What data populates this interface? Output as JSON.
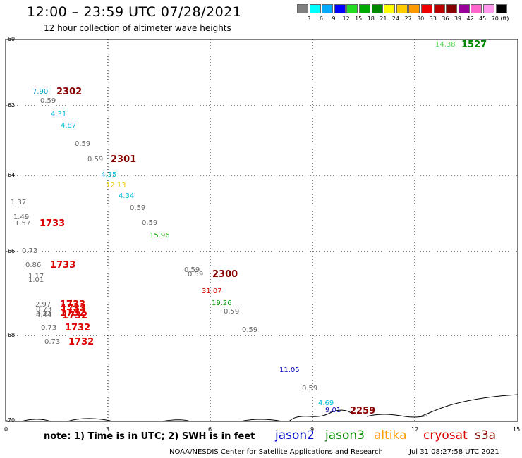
{
  "title": "12:00 – 23:59 UTC 07/28/2021",
  "subtitle": "12 hour collection of altimeter wave heights",
  "legend": {
    "labels": [
      "3",
      "6",
      "9",
      "12",
      "15",
      "18",
      "21",
      "24",
      "27",
      "30",
      "33",
      "36",
      "39",
      "42",
      "45",
      "70"
    ],
    "unit": "(ft)",
    "colors": [
      "#808080",
      "#00ffff",
      "#00aaff",
      "#0000ff",
      "#22dd22",
      "#00aa00",
      "#008800",
      "#ffff00",
      "#ffcc00",
      "#ff9900",
      "#ee0000",
      "#bb0000",
      "#880000",
      "#990099",
      "#ff66cc",
      "#ff99ee",
      "#000000"
    ]
  },
  "axes": {
    "x_ticks": [
      "0",
      "3",
      "6",
      "9",
      "12",
      "15"
    ],
    "y_ticks": [
      "-60",
      "-62",
      "-64",
      "-66",
      "-68",
      "-70"
    ]
  },
  "wave_values": [
    {
      "text": "14.38",
      "color": "#55dd55"
    },
    {
      "text": "7.90",
      "color": "#0099cc"
    },
    {
      "text": "0.59",
      "color": "#666666"
    },
    {
      "text": "4.31",
      "color": "#00bbdd"
    },
    {
      "text": "4.87",
      "color": "#00bbdd"
    },
    {
      "text": "0.59",
      "color": "#666666"
    },
    {
      "text": "0.59",
      "color": "#666666"
    },
    {
      "text": "4.35",
      "color": "#00bbdd"
    },
    {
      "text": "12.13",
      "color": "#eecc00"
    },
    {
      "text": "4.34",
      "color": "#00bbdd"
    },
    {
      "text": "0.59",
      "color": "#666666"
    },
    {
      "text": "1.37",
      "color": "#666666"
    },
    {
      "text": "1.49",
      "color": "#666666"
    },
    {
      "text": "1.57",
      "color": "#666666"
    },
    {
      "text": "0.59",
      "color": "#666666"
    },
    {
      "text": "15.96",
      "color": "#009900"
    },
    {
      "text": "0.73",
      "color": "#666666"
    },
    {
      "text": "0.86",
      "color": "#666666"
    },
    {
      "text": "1.17",
      "color": "#666666"
    },
    {
      "text": "1.01",
      "color": "#666666"
    },
    {
      "text": "0.59",
      "color": "#666666"
    },
    {
      "text": "0.59",
      "color": "#666666"
    },
    {
      "text": "31.07",
      "color": "#cc0000"
    },
    {
      "text": "19.26",
      "color": "#009900"
    },
    {
      "text": "0.59",
      "color": "#666666"
    },
    {
      "text": "2.97",
      "color": "#666666"
    },
    {
      "text": "0.73",
      "color": "#666666"
    },
    {
      "text": "0.73",
      "color": "#666666"
    },
    {
      "text": "4.44",
      "color": "#666666"
    },
    {
      "text": "0.59",
      "color": "#666666"
    },
    {
      "text": "0.73",
      "color": "#666666"
    },
    {
      "text": "0.73",
      "color": "#666666"
    },
    {
      "text": "11.05",
      "color": "#0000bb"
    },
    {
      "text": "0.59",
      "color": "#666666"
    },
    {
      "text": "4.69",
      "color": "#00bbdd"
    },
    {
      "text": "9.01",
      "color": "#0000bb"
    }
  ],
  "pass_times": [
    {
      "text": "1527",
      "color": "#008800"
    },
    {
      "text": "2302",
      "color": "#880000"
    },
    {
      "text": "2301",
      "color": "#880000"
    },
    {
      "text": "1733",
      "color": "#dd0000"
    },
    {
      "text": "1733",
      "color": "#dd0000"
    },
    {
      "text": "2300",
      "color": "#880000"
    },
    {
      "text": "1733",
      "color": "#dd0000"
    },
    {
      "text": "1733",
      "color": "#dd0000"
    },
    {
      "text": "1732",
      "color": "#dd0000"
    },
    {
      "text": "1732",
      "color": "#dd0000"
    },
    {
      "text": "1732",
      "color": "#dd0000"
    },
    {
      "text": "1732",
      "color": "#dd0000"
    },
    {
      "text": "2259",
      "color": "#880000"
    }
  ],
  "footer": {
    "note": "note:  1) Time is in UTC;  2) SWH is in feet",
    "missions": [
      {
        "text": "jason2",
        "color": "#0000cc"
      },
      {
        "text": "jason3",
        "color": "#008800"
      },
      {
        "text": "altika",
        "color": "#ff9900"
      },
      {
        "text": "cryosat",
        "color": "#dd0000"
      },
      {
        "text": "s3a",
        "color": "#880000"
      }
    ],
    "credit": "NOAA/NESDIS Center for Satellite Applications and Research",
    "timestamp": "Jul 31 08:27:58 UTC 2021"
  }
}
